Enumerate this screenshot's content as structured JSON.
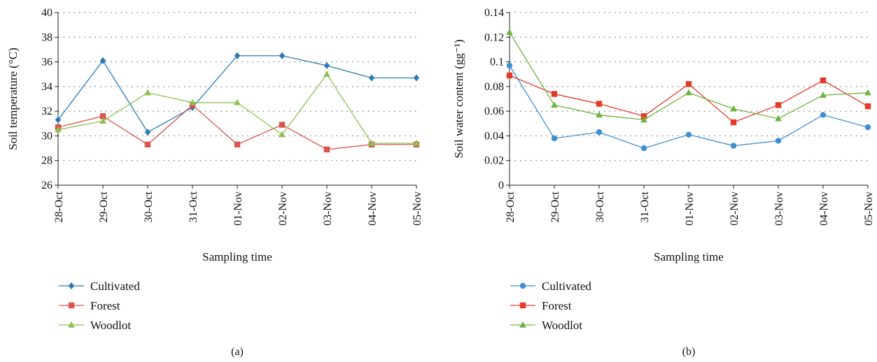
{
  "chart_data": [
    {
      "type": "line",
      "panel_label": "(a)",
      "categories": [
        "28-Oct",
        "29-Oct",
        "30-Oct",
        "31-Oct",
        "01-Nov",
        "02-Nov",
        "03-Nov",
        "04-Nov",
        "05-Nov"
      ],
      "xlabel": "Sampling time",
      "ylabel": "Soil temperature (°C)",
      "ylim": [
        26,
        40
      ],
      "yticks": [
        26,
        28,
        30,
        32,
        34,
        36,
        38,
        40
      ],
      "ytick_labels": [
        "26",
        "28",
        "30",
        "32",
        "34",
        "36",
        "38",
        "40"
      ],
      "grid": true,
      "legend_position": "bottom-left",
      "series": [
        {
          "name": "Cultivated",
          "color": "#2a7ab8",
          "marker": "diamond",
          "values": [
            31.3,
            36.1,
            30.3,
            32.3,
            36.5,
            36.5,
            35.7,
            34.7,
            34.7
          ]
        },
        {
          "name": "Forest",
          "color": "#d9534f",
          "marker": "square",
          "values": [
            30.7,
            31.6,
            29.3,
            32.5,
            29.3,
            30.9,
            28.9,
            29.3,
            29.3
          ]
        },
        {
          "name": "Woodlot",
          "color": "#8cc152",
          "marker": "triangle",
          "values": [
            30.5,
            31.2,
            33.5,
            32.7,
            32.7,
            30.1,
            35.0,
            29.4,
            29.4
          ]
        }
      ]
    },
    {
      "type": "line",
      "panel_label": "(b)",
      "categories": [
        "28-Oct",
        "29-Oct",
        "30-Oct",
        "31-Oct",
        "01-Nov",
        "02-Nov",
        "03-Nov",
        "04-Nov",
        "05-Nov"
      ],
      "xlabel": "Sampling time",
      "ylabel": "Soil water content (gg⁻¹)",
      "ylim": [
        0,
        0.14
      ],
      "yticks": [
        0,
        0.02,
        0.04,
        0.06,
        0.08,
        0.1,
        0.12,
        0.14
      ],
      "ytick_labels": [
        "0",
        "0.02",
        "0.04",
        "0.06",
        "0.08",
        "0.1",
        "0.12",
        "0.14"
      ],
      "grid": true,
      "legend_position": "bottom-left",
      "series": [
        {
          "name": "Cultivated",
          "color": "#3d8fd1",
          "marker": "circle",
          "values": [
            0.097,
            0.038,
            0.043,
            0.03,
            0.041,
            0.032,
            0.036,
            0.057,
            0.047
          ]
        },
        {
          "name": "Forest",
          "color": "#e53a2a",
          "marker": "square",
          "values": [
            0.089,
            0.074,
            0.066,
            0.056,
            0.082,
            0.051,
            0.065,
            0.085,
            0.064
          ]
        },
        {
          "name": "Woodlot",
          "color": "#6db33f",
          "marker": "triangle",
          "values": [
            0.124,
            0.065,
            0.057,
            0.053,
            0.075,
            0.062,
            0.054,
            0.073,
            0.075
          ]
        }
      ]
    }
  ]
}
